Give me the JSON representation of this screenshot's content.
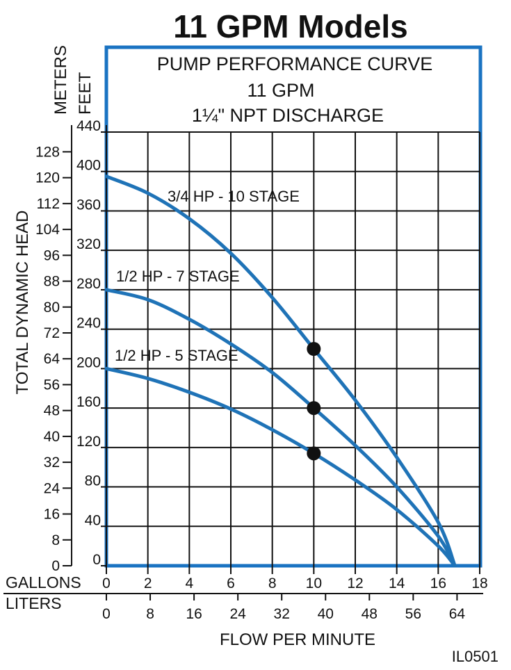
{
  "header": {
    "title": "11 GPM Models",
    "title_color": "#1a73c2"
  },
  "figure_id": "IL0501",
  "chart_data": {
    "type": "line",
    "title_lines": [
      "PUMP PERFORMANCE CURVE",
      "11 GPM",
      "1¼\" NPT DISCHARGE"
    ],
    "xlabel": "FLOW PER MINUTE",
    "ylabel": "TOTAL DYNAMIC HEAD",
    "x_unit_gallons_label": "GALLONS",
    "x_unit_liters_label": "LITERS",
    "y_unit_meters_label": "METERS",
    "y_unit_feet_label": "FEET",
    "xlim_gallons": [
      0,
      18
    ],
    "ylim_feet": [
      0,
      440
    ],
    "gallon_ticks": [
      "0",
      "2",
      "4",
      "6",
      "8",
      "10",
      "12",
      "14",
      "16",
      "18"
    ],
    "liter_ticks": [
      "0",
      "8",
      "16",
      "24",
      "32",
      "40",
      "48",
      "56",
      "64"
    ],
    "feet_ticks": [
      "0",
      "40",
      "80",
      "120",
      "160",
      "200",
      "240",
      "280",
      "320",
      "360",
      "400",
      "440"
    ],
    "meter_ticks": [
      "0",
      "8",
      "16",
      "24",
      "32",
      "40",
      "48",
      "56",
      "64",
      "72",
      "80",
      "88",
      "96",
      "104",
      "112",
      "120",
      "128"
    ],
    "grid": true,
    "series": [
      {
        "name": "3/4 HP - 10 STAGE",
        "x": [
          0,
          2,
          4,
          6,
          8,
          10,
          12,
          14,
          16,
          16.8
        ],
        "y": [
          395,
          378,
          352,
          317,
          272,
          220,
          168,
          110,
          44,
          0
        ]
      },
      {
        "name": "1/2 HP - 7 STAGE",
        "x": [
          0,
          2,
          4,
          6,
          8,
          10,
          12,
          14,
          16,
          16.8
        ],
        "y": [
          280,
          270,
          250,
          225,
          196,
          160,
          122,
          80,
          30,
          0
        ]
      },
      {
        "name": "1/2 HP - 5 STAGE",
        "x": [
          0,
          2,
          4,
          6,
          8,
          10,
          12,
          14,
          16,
          16.8
        ],
        "y": [
          200,
          190,
          176,
          159,
          138,
          114,
          87,
          57,
          20,
          0
        ]
      }
    ],
    "markers": [
      {
        "x": 10,
        "y": 220
      },
      {
        "x": 10,
        "y": 160
      },
      {
        "x": 10,
        "y": 114
      }
    ],
    "colors": {
      "curve": "#1f73b7",
      "frame": "#1a73c2",
      "marker": "#111111",
      "grid": "#111111"
    }
  }
}
